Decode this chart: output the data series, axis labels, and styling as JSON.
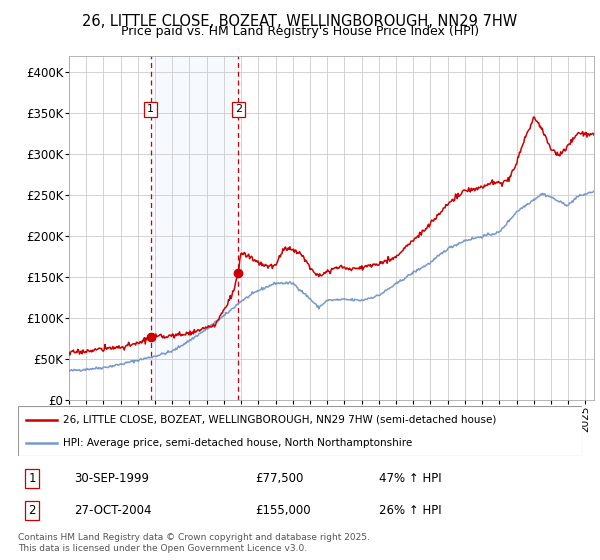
{
  "title_line1": "26, LITTLE CLOSE, BOZEAT, WELLINGBOROUGH, NN29 7HW",
  "title_line2": "Price paid vs. HM Land Registry's House Price Index (HPI)",
  "legend_label1": "26, LITTLE CLOSE, BOZEAT, WELLINGBOROUGH, NN29 7HW (semi-detached house)",
  "legend_label2": "HPI: Average price, semi-detached house, North Northamptonshire",
  "footnote": "Contains HM Land Registry data © Crown copyright and database right 2025.\nThis data is licensed under the Open Government Licence v3.0.",
  "sale1_date": "30-SEP-1999",
  "sale1_price": "£77,500",
  "sale1_hpi": "47% ↑ HPI",
  "sale2_date": "27-OCT-2004",
  "sale2_price": "£155,000",
  "sale2_hpi": "26% ↑ HPI",
  "price_color": "#cc0000",
  "hpi_color": "#7799cc",
  "background_color": "#ffffff",
  "grid_color": "#cccccc",
  "shading_color": "#ddeeff",
  "ylim": [
    0,
    420000
  ],
  "yticks": [
    0,
    50000,
    100000,
    150000,
    200000,
    250000,
    300000,
    350000,
    400000
  ],
  "x_start_year": 1995,
  "x_end_year": 2025,
  "sale1_year": 1999.75,
  "sale2_year": 2004.83,
  "sale1_price_val": 77500,
  "sale2_price_val": 155000,
  "hpi_control_x": [
    1995.0,
    1996.0,
    1997.0,
    1998.0,
    1999.0,
    2000.0,
    2001.0,
    2002.0,
    2003.0,
    2004.0,
    2005.0,
    2006.0,
    2007.0,
    2008.0,
    2009.0,
    2009.5,
    2010.0,
    2011.0,
    2012.0,
    2013.0,
    2014.0,
    2015.0,
    2016.0,
    2017.0,
    2018.0,
    2019.0,
    2020.0,
    2021.0,
    2022.0,
    2022.5,
    2023.0,
    2023.5,
    2024.0,
    2024.5,
    2025.5
  ],
  "hpi_control_y": [
    36000,
    38000,
    40000,
    44000,
    49000,
    54000,
    60000,
    73000,
    87000,
    103000,
    121000,
    134000,
    143000,
    143000,
    124000,
    113000,
    122000,
    123000,
    122000,
    128000,
    142000,
    156000,
    168000,
    185000,
    195000,
    200000,
    205000,
    230000,
    245000,
    252000,
    248000,
    242000,
    238000,
    248000,
    255000
  ],
  "price_control_x": [
    1995.0,
    1996.0,
    1997.0,
    1998.0,
    1999.0,
    1999.75,
    2000.5,
    2001.5,
    2002.5,
    2003.5,
    2004.5,
    2004.83,
    2005.0,
    2005.5,
    2006.0,
    2006.5,
    2007.0,
    2007.5,
    2008.0,
    2008.5,
    2009.0,
    2009.5,
    2010.0,
    2010.5,
    2011.0,
    2011.5,
    2012.0,
    2013.0,
    2014.0,
    2015.0,
    2016.0,
    2017.0,
    2018.0,
    2019.0,
    2019.5,
    2020.0,
    2020.5,
    2021.0,
    2021.5,
    2022.0,
    2022.5,
    2023.0,
    2023.5,
    2024.0,
    2024.5,
    2025.5
  ],
  "price_control_y": [
    58000,
    60000,
    63000,
    65000,
    69000,
    77500,
    78000,
    80000,
    85000,
    92000,
    130000,
    155000,
    180000,
    175000,
    168000,
    163000,
    165000,
    185000,
    185000,
    178000,
    162000,
    153000,
    157000,
    162000,
    162000,
    160000,
    162000,
    167000,
    175000,
    195000,
    215000,
    240000,
    255000,
    260000,
    265000,
    265000,
    268000,
    290000,
    320000,
    345000,
    330000,
    305000,
    300000,
    310000,
    325000,
    325000
  ]
}
